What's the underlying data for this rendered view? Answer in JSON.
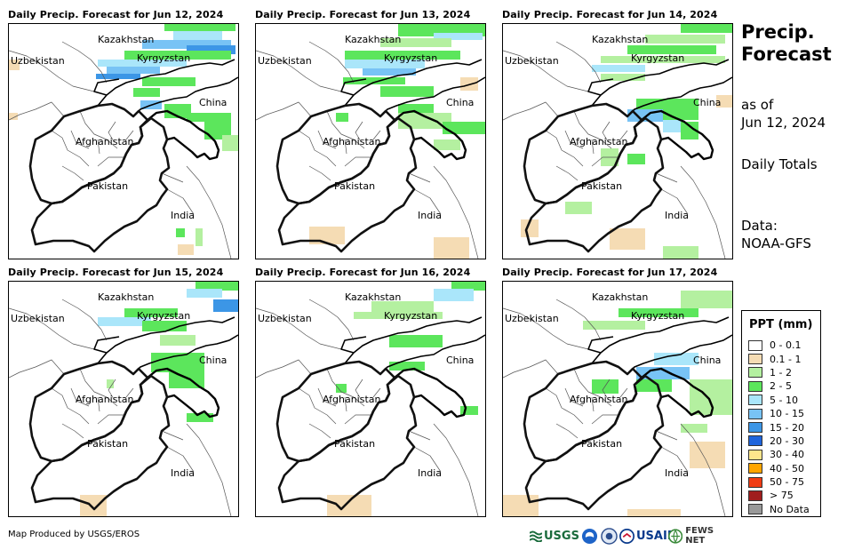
{
  "panels": [
    {
      "title": "Daily Precip. Forecast for Jun 12, 2024"
    },
    {
      "title": "Daily Precip. Forecast for Jun 13, 2024"
    },
    {
      "title": "Daily Precip. Forecast for Jun 14, 2024"
    },
    {
      "title": "Daily Precip. Forecast for Jun 15, 2024"
    },
    {
      "title": "Daily Precip. Forecast for Jun 16, 2024"
    },
    {
      "title": "Daily Precip. Forecast for Jun 17, 2024"
    }
  ],
  "map_labels": {
    "kazakhstan": "Kazakhstan",
    "uzbekistan": "Uzbekistan",
    "kyrgyzstan": "Kyrgyzstan",
    "china": "China",
    "afghanistan": "Afghanistan",
    "pakistan": "Pakistan",
    "india": "India"
  },
  "sidebar": {
    "title_line1": "Precip.",
    "title_line2": "Forecast",
    "asof_line1": "as of",
    "asof_line2": "Jun 12, 2024",
    "daily": "Daily Totals",
    "data_line1": "Data:",
    "data_line2": "NOAA-GFS"
  },
  "legend": {
    "title": "PPT (mm)",
    "items": [
      {
        "label": "0 - 0.1",
        "color": "#ffffff"
      },
      {
        "label": "0.1 - 1",
        "color": "#f5dcb4"
      },
      {
        "label": "1 - 2",
        "color": "#b4f0a0"
      },
      {
        "label": "2 - 5",
        "color": "#5ce65c"
      },
      {
        "label": "5 - 10",
        "color": "#aae6fa"
      },
      {
        "label": "10 - 15",
        "color": "#78c3f5"
      },
      {
        "label": "15 - 20",
        "color": "#3c96e6"
      },
      {
        "label": "20 - 30",
        "color": "#1e64dc"
      },
      {
        "label": "30 - 40",
        "color": "#ffe68c"
      },
      {
        "label": "40 - 50",
        "color": "#ffa500"
      },
      {
        "label": "50 - 75",
        "color": "#f03c14"
      },
      {
        "label": "> 75",
        "color": "#a01e1e"
      },
      {
        "label": "No Data",
        "color": "#999999"
      }
    ]
  },
  "footer": {
    "credit": "Map Produced by USGS/EROS"
  },
  "logos": {
    "usgs": "USGS",
    "usaid": "USAID",
    "fewsnet": "FEWS NET"
  }
}
